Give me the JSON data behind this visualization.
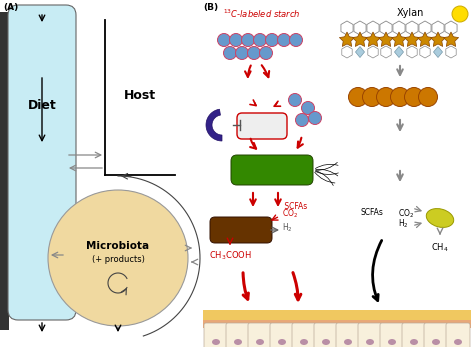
{
  "panel_A_label": "(A)",
  "panel_B_label": "(B)",
  "diet_label": "Diet",
  "host_label": "Host",
  "microbiota_label": "Microbiota",
  "microbiota_sublabel": "(+ products)",
  "starch_label": "$^{13}$C-labeled starch",
  "xylan_label": "Xylan",
  "bg_color": "#ffffff",
  "diet_tube_color": "#c8ecf4",
  "microbiota_circle_color": "#f0d9a0",
  "starch_circle_color": "#6699cc",
  "starch_outline_color": "#cc0033",
  "xylan_star_color": "#cc8800",
  "xylan_ball_color": "#cc7700",
  "xylan_top_ball_color": "#ffdd00",
  "bacterium_green_color": "#338800",
  "bacterium_brown_color": "#663300",
  "red_color": "#cc0000",
  "gray_color": "#777777",
  "black_color": "#111111",
  "intestine_yellow": "#f0c860",
  "intestine_pink": "#e8a878",
  "cell_color": "#f8f0dc",
  "cell_nucleus_color": "#aa7799",
  "crescent_color": "#332288",
  "yellow_blob_color": "#cccc22"
}
